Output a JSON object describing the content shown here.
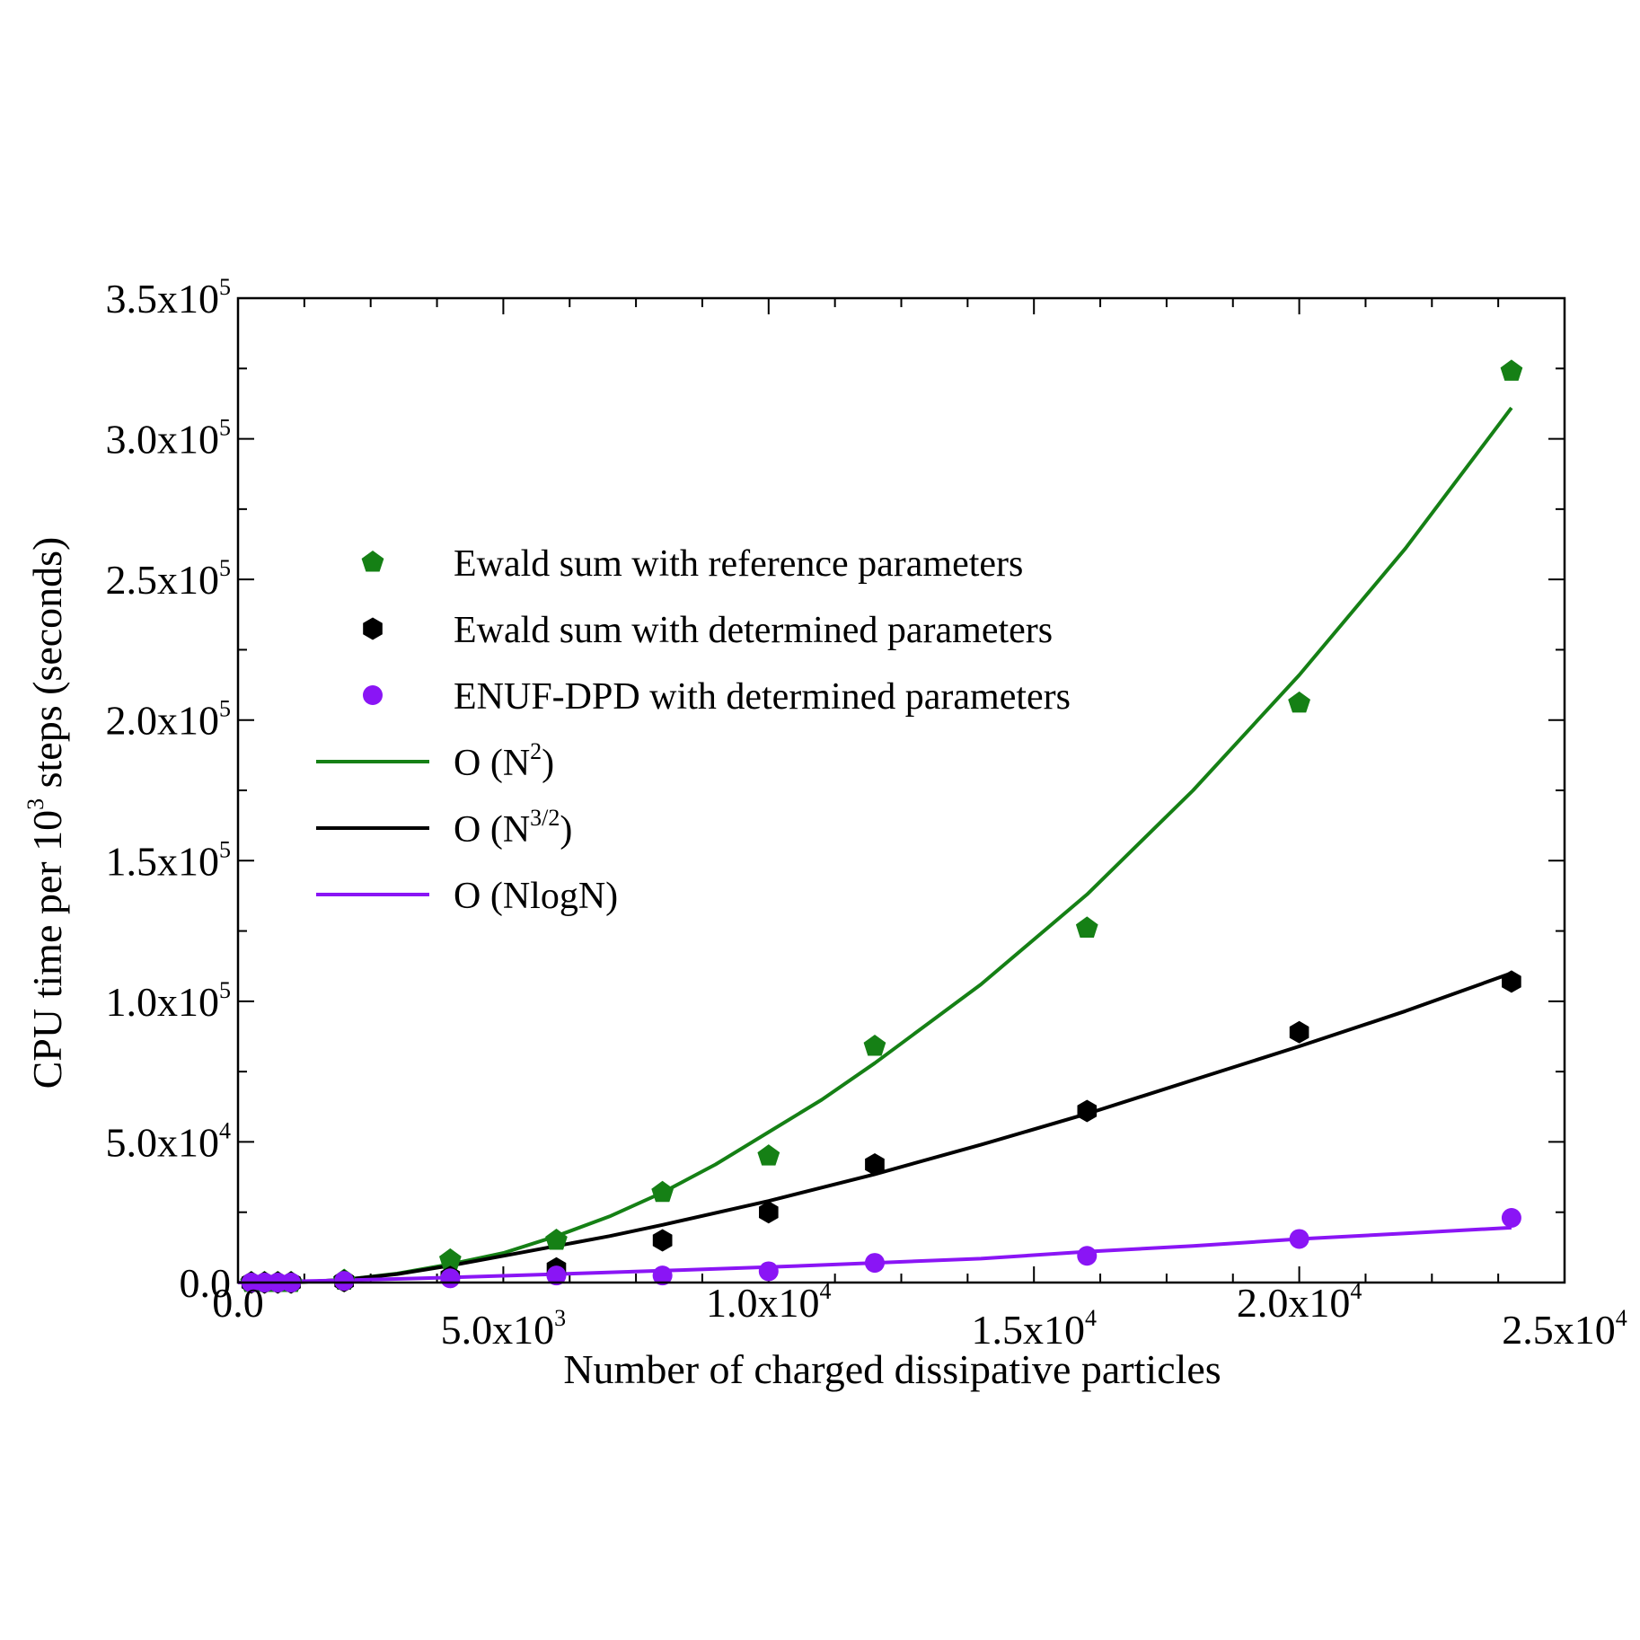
{
  "chart_data": {
    "type": "scatter",
    "xlabel": "Number of charged dissipative particles",
    "ylabel": {
      "pre": "CPU time per 10",
      "sup": "3",
      "post": " steps (seconds)"
    },
    "xlim": [
      0,
      25000
    ],
    "ylim": [
      0,
      350000
    ],
    "x_ticks": [
      {
        "value": 0,
        "mant": "0.0",
        "exp": ""
      },
      {
        "value": 5000,
        "mant": "5.0x10",
        "exp": "3"
      },
      {
        "value": 10000,
        "mant": "1.0x10",
        "exp": "4"
      },
      {
        "value": 15000,
        "mant": "1.5x10",
        "exp": "4"
      },
      {
        "value": 20000,
        "mant": "2.0x10",
        "exp": "4"
      },
      {
        "value": 25000,
        "mant": "2.5x10",
        "exp": "4"
      }
    ],
    "y_ticks": [
      {
        "value": 0,
        "mant": "0.0",
        "exp": ""
      },
      {
        "value": 50000,
        "mant": "5.0x10",
        "exp": "4"
      },
      {
        "value": 100000,
        "mant": "1.0x10",
        "exp": "5"
      },
      {
        "value": 150000,
        "mant": "1.5x10",
        "exp": "5"
      },
      {
        "value": 200000,
        "mant": "2.0x10",
        "exp": "5"
      },
      {
        "value": 250000,
        "mant": "2.5x10",
        "exp": "5"
      },
      {
        "value": 300000,
        "mant": "3.0x10",
        "exp": "5"
      },
      {
        "value": 350000,
        "mant": "3.5x10",
        "exp": "5"
      }
    ],
    "grid": false,
    "legend_position": "upper-left",
    "series": [
      {
        "name": "Ewald sum with reference parameters",
        "kind": "scatter",
        "marker": "pentagon",
        "color": "#158015",
        "points": [
          [
            250,
            0
          ],
          [
            500,
            0
          ],
          [
            750,
            0
          ],
          [
            1000,
            0
          ],
          [
            2000,
            800
          ],
          [
            4000,
            8000
          ],
          [
            6000,
            15000
          ],
          [
            8000,
            32000
          ],
          [
            10000,
            45000
          ],
          [
            12000,
            84000
          ],
          [
            16000,
            126000
          ],
          [
            20000,
            206000
          ],
          [
            24000,
            324000
          ]
        ]
      },
      {
        "name": "Ewald sum with determined parameters",
        "kind": "scatter",
        "marker": "hexagon",
        "color": "#000000",
        "points": [
          [
            250,
            0
          ],
          [
            500,
            0
          ],
          [
            750,
            0
          ],
          [
            1000,
            0
          ],
          [
            2000,
            500
          ],
          [
            4000,
            2000
          ],
          [
            6000,
            5000
          ],
          [
            8000,
            15000
          ],
          [
            10000,
            25000
          ],
          [
            12000,
            42000
          ],
          [
            16000,
            61000
          ],
          [
            20000,
            89000
          ],
          [
            24000,
            107000
          ]
        ]
      },
      {
        "name": "ENUF-DPD with determined parameters",
        "kind": "scatter",
        "marker": "circle",
        "color": "#8a15f5",
        "points": [
          [
            250,
            0
          ],
          [
            500,
            0
          ],
          [
            750,
            0
          ],
          [
            1000,
            0
          ],
          [
            2000,
            600
          ],
          [
            4000,
            1500
          ],
          [
            6000,
            2500
          ],
          [
            8000,
            2500
          ],
          [
            10000,
            4000
          ],
          [
            12000,
            7000
          ],
          [
            16000,
            9500
          ],
          [
            20000,
            15500
          ],
          [
            24000,
            23000
          ]
        ]
      },
      {
        "name": {
          "pre": "O (N",
          "sup": "2",
          "post": ")"
        },
        "kind": "line",
        "color": "#158015",
        "points": [
          [
            1000,
            0
          ],
          [
            2000,
            1000
          ],
          [
            3000,
            3200
          ],
          [
            4000,
            6500
          ],
          [
            5000,
            10500
          ],
          [
            6000,
            16500
          ],
          [
            7000,
            23500
          ],
          [
            8000,
            32000
          ],
          [
            9000,
            42000
          ],
          [
            10000,
            53500
          ],
          [
            11000,
            65000
          ],
          [
            12000,
            78000
          ],
          [
            14000,
            106000
          ],
          [
            16000,
            138000
          ],
          [
            18000,
            175000
          ],
          [
            20000,
            216000
          ],
          [
            22000,
            261000
          ],
          [
            24000,
            311000
          ]
        ]
      },
      {
        "name": {
          "pre": "O (N",
          "sup": "3/2",
          "post": ")"
        },
        "kind": "line",
        "color": "#000000",
        "points": [
          [
            1000,
            0
          ],
          [
            2000,
            1000
          ],
          [
            3000,
            3000
          ],
          [
            4000,
            6000
          ],
          [
            5000,
            9500
          ],
          [
            6000,
            13000
          ],
          [
            7000,
            16500
          ],
          [
            8000,
            20500
          ],
          [
            10000,
            29000
          ],
          [
            12000,
            38500
          ],
          [
            14000,
            49000
          ],
          [
            16000,
            60000
          ],
          [
            18000,
            72000
          ],
          [
            20000,
            84000
          ],
          [
            22000,
            96500
          ],
          [
            24000,
            110000
          ]
        ]
      },
      {
        "name": "O (NlogN)",
        "kind": "line",
        "color": "#8a15f5",
        "points": [
          [
            0,
            0
          ],
          [
            2000,
            800
          ],
          [
            4000,
            1800
          ],
          [
            6000,
            3000
          ],
          [
            8000,
            4200
          ],
          [
            10000,
            5500
          ],
          [
            12000,
            7000
          ],
          [
            14000,
            8500
          ],
          [
            16000,
            11000
          ],
          [
            18000,
            13000
          ],
          [
            20000,
            15500
          ],
          [
            22000,
            17500
          ],
          [
            24000,
            19500
          ]
        ]
      }
    ]
  }
}
